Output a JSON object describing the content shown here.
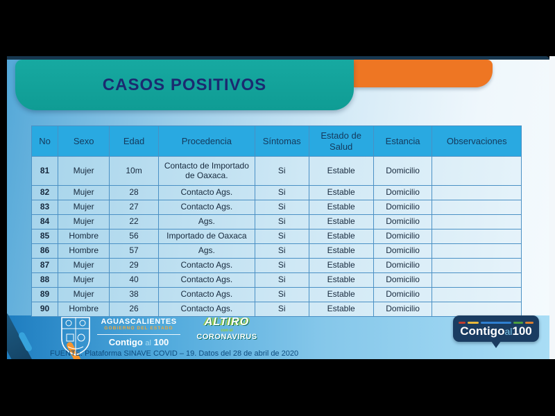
{
  "title": "CASOS POSITIVOS",
  "table": {
    "columns": [
      "No",
      "Sexo",
      "Edad",
      "Procedencia",
      "Síntomas",
      "Estado de Salud",
      "Estancia",
      "Observaciones"
    ],
    "col_widths_pct": [
      5.4,
      10.5,
      10.0,
      19.7,
      11.0,
      13.2,
      12.0,
      18.2
    ],
    "rows": [
      [
        "81",
        "Mujer",
        "10m",
        "Contacto de Importado de Oaxaca.",
        "Si",
        "Estable",
        "Domicilio",
        ""
      ],
      [
        "82",
        "Mujer",
        "28",
        "Contacto Ags.",
        "Si",
        "Estable",
        "Domicilio",
        ""
      ],
      [
        "83",
        "Mujer",
        "27",
        "Contacto Ags.",
        "Si",
        "Estable",
        "Domicilio",
        ""
      ],
      [
        "84",
        "Mujer",
        "22",
        "Ags.",
        "Si",
        "Estable",
        "Domicilio",
        ""
      ],
      [
        "85",
        "Hombre",
        "56",
        "Importado de Oaxaca",
        "Si",
        "Estable",
        "Domicilio",
        ""
      ],
      [
        "86",
        "Hombre",
        "57",
        "Ags.",
        "Si",
        "Estable",
        "Domicilio",
        ""
      ],
      [
        "87",
        "Mujer",
        "29",
        "Contacto Ags.",
        "Si",
        "Estable",
        "Domicilio",
        ""
      ],
      [
        "88",
        "Mujer",
        "40",
        "Contacto Ags.",
        "Si",
        "Estable",
        "Domicilio",
        ""
      ],
      [
        "89",
        "Mujer",
        "38",
        "Contacto Ags.",
        "Si",
        "Estable",
        "Domicilio",
        ""
      ],
      [
        "90",
        "Hombre",
        "26",
        "Contacto Ags.",
        "Si",
        "Estable",
        "Domicilio",
        ""
      ]
    ]
  },
  "footer": {
    "gov": {
      "name": "AGUASCALIENTES",
      "dept": "GOBIERNO DEL ESTADO",
      "slogan_contigo": "Contigo",
      "slogan_al": "al",
      "slogan_num": "100"
    },
    "campaign": {
      "top": "ALTIRO",
      "mid": "con el",
      "bottom": "CORONAVIRUS"
    },
    "source": "FUENTE. Plataforma SINAVE COVID – 19. Datos del 28 de abril de 2020",
    "badge": {
      "contigo": "Contigo",
      "al": "al",
      "num": "100",
      "dash_colors": [
        "#C13B2E",
        "#E8B93B",
        "#2F7FD0",
        "#4C9E3F",
        "#DD7E2E"
      ],
      "dash_widths": [
        10,
        16,
        44,
        14,
        12
      ]
    }
  },
  "colors": {
    "teal_banner": "#129C94",
    "orange_banner": "#EE7623",
    "header_blue": "#29A9E1",
    "navy_top_line": "#17374F",
    "title_text": "#1B2A70",
    "footer_band_left": "#1E7DC0",
    "badge_bg": "#1A3C61"
  }
}
